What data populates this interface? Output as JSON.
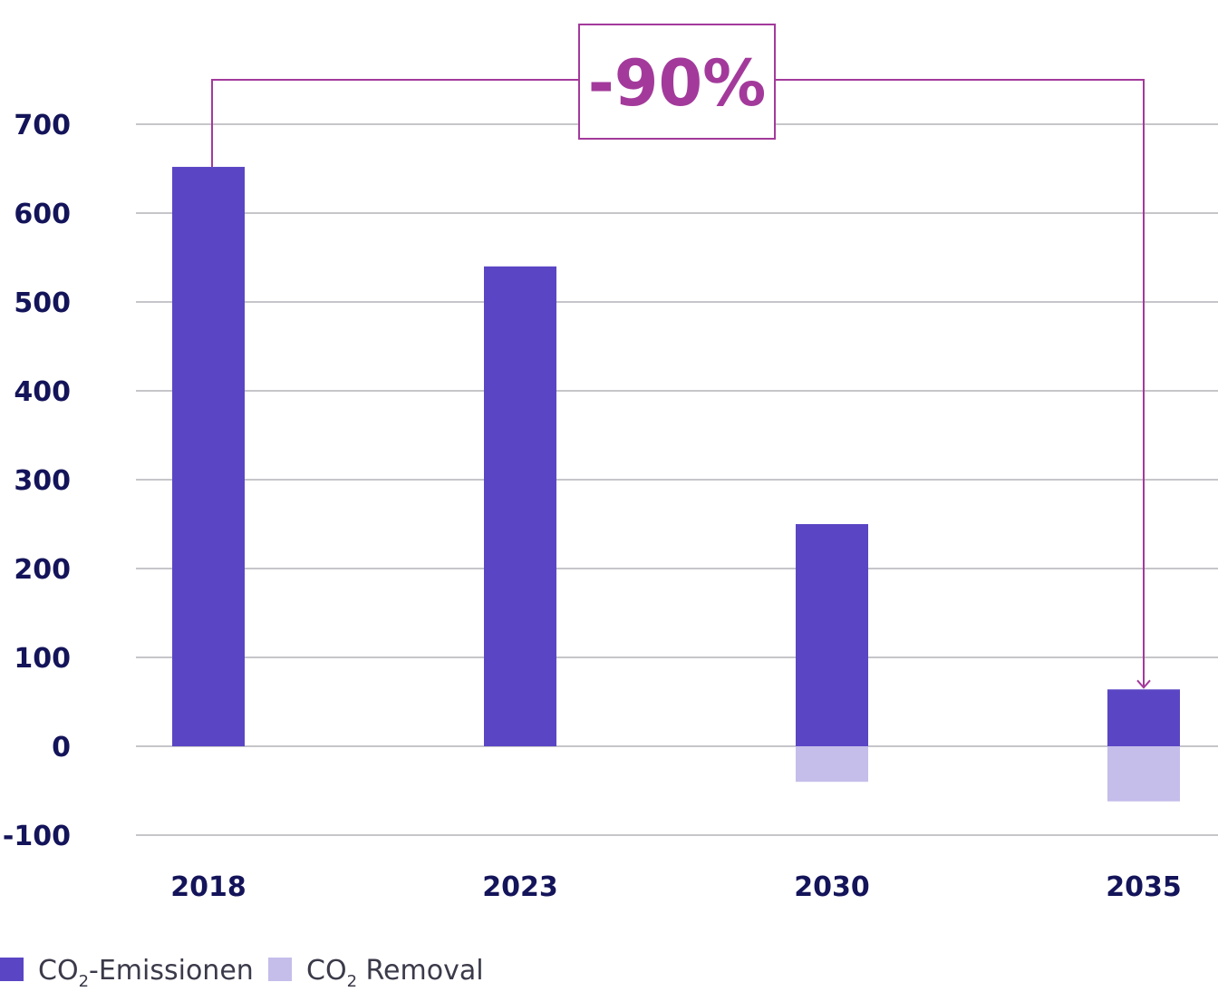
{
  "chart_data": {
    "type": "bar",
    "categories": [
      "2018",
      "2023",
      "2030",
      "2035"
    ],
    "series": [
      {
        "name": "CO2-Emissionen",
        "values": [
          652,
          540,
          250,
          64
        ],
        "color": "#5a46c4"
      },
      {
        "name": "CO2 Removal",
        "values": [
          0,
          0,
          -40,
          -62
        ],
        "color": "#c5bdea"
      }
    ],
    "ylim": [
      -100,
      700
    ],
    "yticks": [
      700,
      600,
      500,
      400,
      300,
      200,
      100,
      0,
      -100
    ],
    "grid": true,
    "legend_position": "bottom-left",
    "legend": [
      {
        "base": "CO",
        "sub": "2",
        "rest": "-Emissionen",
        "color": "#5a46c4"
      },
      {
        "base": "CO",
        "sub": "2",
        "rest": " Removal",
        "color": "#c5bdea"
      }
    ],
    "annotation": {
      "text": "-90%",
      "from_category": "2018",
      "to_category": "2035",
      "color": "#a33a9b"
    }
  }
}
